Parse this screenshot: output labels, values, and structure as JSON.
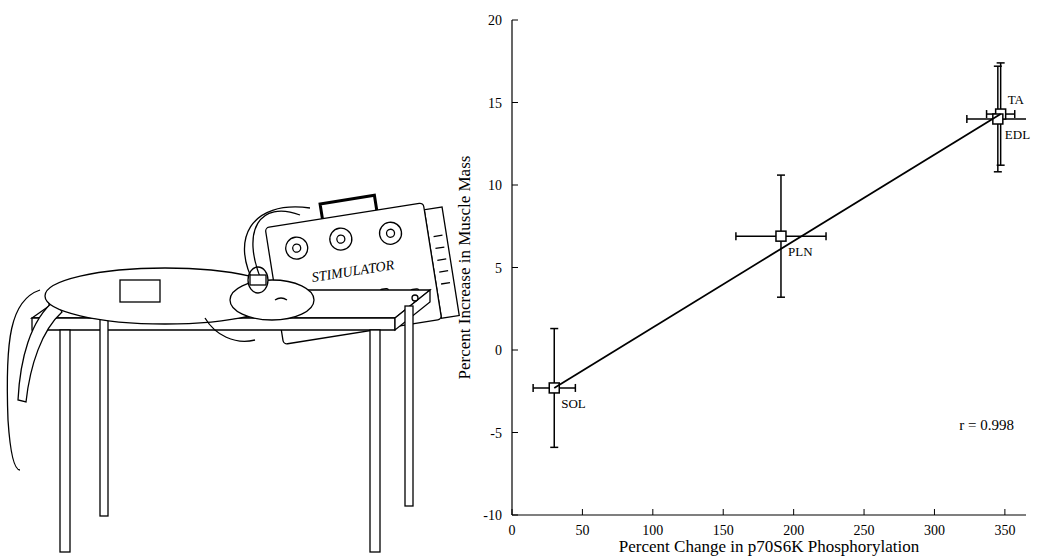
{
  "chart_data": {
    "type": "scatter",
    "x_label": "Percent Change in p70S6K Phosphorylation",
    "y_label": "Percent Increase in Muscle Mass",
    "xlim": [
      0,
      365
    ],
    "xticks": [
      0,
      50,
      100,
      150,
      200,
      250,
      300,
      350
    ],
    "ylim": [
      -10,
      20
    ],
    "yticks": [
      -10,
      -5,
      0,
      5,
      10,
      15,
      20
    ],
    "grid": false,
    "series": [
      {
        "type": "scatter",
        "marker": "square",
        "color": "#000000",
        "labels": [
          "SOL",
          "PLN",
          "TA",
          "EDL"
        ],
        "x": [
          30,
          191,
          347,
          345
        ],
        "values": [
          -2.3,
          6.9,
          14.3,
          14.0
        ],
        "x_error": [
          15,
          32,
          10,
          22
        ],
        "y_error": [
          3.6,
          3.7,
          3.1,
          3.2
        ]
      },
      {
        "type": "line",
        "line_style": "solid",
        "color": "#000000",
        "x": [
          30,
          347
        ],
        "values": [
          -2.3,
          14.3
        ]
      }
    ],
    "annotations": [
      "r = 0.998"
    ]
  },
  "illustration": {
    "device_label": "STIMULATOR"
  }
}
